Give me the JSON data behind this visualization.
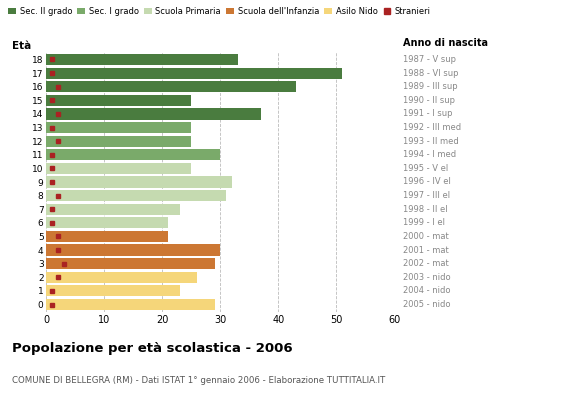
{
  "ages": [
    18,
    17,
    16,
    15,
    14,
    13,
    12,
    11,
    10,
    9,
    8,
    7,
    6,
    5,
    4,
    3,
    2,
    1,
    0
  ],
  "values": [
    33,
    51,
    43,
    25,
    37,
    25,
    25,
    30,
    25,
    32,
    31,
    23,
    21,
    21,
    30,
    29,
    26,
    23,
    29
  ],
  "stranieri": [
    1,
    1,
    2,
    1,
    2,
    1,
    2,
    1,
    1,
    1,
    2,
    1,
    1,
    2,
    2,
    3,
    2,
    1,
    1
  ],
  "bar_colors": {
    "18": "#4a7c3f",
    "17": "#4a7c3f",
    "16": "#4a7c3f",
    "15": "#4a7c3f",
    "14": "#4a7c3f",
    "13": "#7aaa6a",
    "12": "#7aaa6a",
    "11": "#7aaa6a",
    "10": "#c5dab0",
    "9": "#c5dab0",
    "8": "#c5dab0",
    "7": "#c5dab0",
    "6": "#c5dab0",
    "5": "#cc7733",
    "4": "#cc7733",
    "3": "#cc7733",
    "2": "#f5d67a",
    "1": "#f5d67a",
    "0": "#f5d67a"
  },
  "right_labels": {
    "18": "1987 - V sup",
    "17": "1988 - VI sup",
    "16": "1989 - III sup",
    "15": "1990 - II sup",
    "14": "1991 - I sup",
    "13": "1992 - III med",
    "12": "1993 - II med",
    "11": "1994 - I med",
    "10": "1995 - V el",
    "9": "1996 - IV el",
    "8": "1997 - III el",
    "7": "1998 - II el",
    "6": "1999 - I el",
    "5": "2000 - mat",
    "4": "2001 - mat",
    "3": "2002 - mat",
    "2": "2003 - nido",
    "1": "2004 - nido",
    "0": "2005 - nido"
  },
  "legend_labels": [
    "Sec. II grado",
    "Sec. I grado",
    "Scuola Primaria",
    "Scuola dell'Infanzia",
    "Asilo Nido",
    "Stranieri"
  ],
  "legend_colors": [
    "#4a7c3f",
    "#7aaa6a",
    "#c5dab0",
    "#cc7733",
    "#f5d67a",
    "#aa2222"
  ],
  "stranieri_color": "#aa2222",
  "title": "Popolazione per età scolastica - 2006",
  "subtitle": "COMUNE DI BELLEGRA (RM) - Dati ISTAT 1° gennaio 2006 - Elaborazione TUTTITALIA.IT",
  "xlabel_eta": "Età",
  "xlabel_anno": "Anno di nascita",
  "xlim": [
    0,
    60
  ],
  "background_color": "#ffffff",
  "grid_color": "#bbbbbb"
}
